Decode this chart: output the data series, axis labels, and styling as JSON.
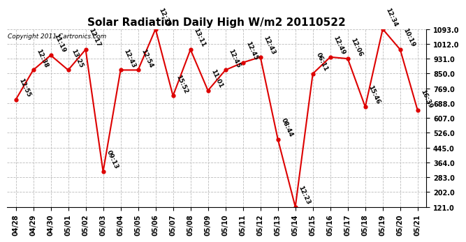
{
  "title": "Solar Radiation Daily High W/m2 20110522",
  "copyright": "Copyright 2011 Cartronics.com",
  "dates": [
    "04/28",
    "04/29",
    "04/30",
    "05/01",
    "05/02",
    "05/03",
    "05/04",
    "05/05",
    "05/06",
    "05/07",
    "05/08",
    "05/09",
    "05/10",
    "05/11",
    "05/12",
    "05/13",
    "05/14",
    "05/15",
    "05/16",
    "05/17",
    "05/18",
    "05/19",
    "05/20",
    "05/21"
  ],
  "values": [
    707,
    869,
    950,
    869,
    981,
    314,
    869,
    869,
    1093,
    728,
    981,
    757,
    869,
    910,
    940,
    491,
    121,
    849,
    940,
    931,
    668,
    1093,
    981,
    648
  ],
  "times": [
    "12:55",
    "12:38",
    "11:19",
    "13:25",
    "12:17",
    "09:13",
    "12:43",
    "12:54",
    "12:39",
    "15:52",
    "13:11",
    "11:01",
    "12:45",
    "12:45",
    "12:43",
    "08:44",
    "12:23",
    "06:11",
    "12:49",
    "12:06",
    "15:46",
    "12:34",
    "10:19",
    "16:39"
  ],
  "ylim_min": 121.0,
  "ylim_max": 1093.0,
  "yticks": [
    121.0,
    202.0,
    283.0,
    364.0,
    445.0,
    526.0,
    607.0,
    688.0,
    769.0,
    850.0,
    931.0,
    1012.0,
    1093.0
  ],
  "line_color": "#dd0000",
  "marker_color": "#dd0000",
  "bg_color": "#ffffff",
  "grid_color": "#bbbbbb",
  "title_fontsize": 11,
  "annotation_fontsize": 6.5,
  "copyright_fontsize": 6.5,
  "tick_fontsize": 7
}
